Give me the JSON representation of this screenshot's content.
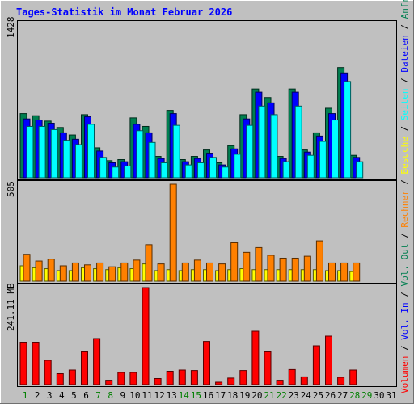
{
  "chart_data": {
    "type": "bar",
    "title": "Tages-Statistik im Monat Februar 2026",
    "categories": [
      "1",
      "2",
      "3",
      "4",
      "5",
      "6",
      "7",
      "8",
      "9",
      "10",
      "11",
      "12",
      "13",
      "14",
      "15",
      "16",
      "17",
      "18",
      "19",
      "20",
      "21",
      "22",
      "23",
      "24",
      "25",
      "26",
      "27",
      "28",
      "29",
      "30",
      "31"
    ],
    "weekend_days": [
      "1",
      "7",
      "8",
      "14",
      "15",
      "21",
      "22",
      "28",
      "29"
    ],
    "panels": [
      {
        "id": "top",
        "ymax_label": "1428",
        "ylim": [
          0,
          1428
        ],
        "series": [
          {
            "name": "Anfragen",
            "color": "#007f50",
            "values": [
              600,
              580,
              530,
              470,
              400,
              590,
              280,
              160,
              170,
              560,
              480,
              200,
              630,
              170,
              200,
              260,
              140,
              300,
              590,
              830,
              750,
              200,
              830,
              260,
              420,
              650,
              1030,
              210,
              0,
              0,
              0
            ]
          },
          {
            "name": "Dateien",
            "color": "#0000ff",
            "values": [
              550,
              540,
              510,
              420,
              360,
              570,
              250,
              140,
              150,
              500,
              420,
              180,
              600,
              150,
              180,
              230,
              120,
              270,
              550,
              800,
              700,
              180,
              800,
              240,
              390,
              600,
              980,
              190,
              0,
              0,
              0
            ]
          },
          {
            "name": "Seiten",
            "color": "#00ffff",
            "values": [
              480,
              480,
              450,
              350,
              310,
              500,
              190,
              100,
              110,
              440,
              330,
              140,
              490,
              120,
              140,
              190,
              100,
              220,
              490,
              670,
              590,
              150,
              670,
              210,
              340,
              540,
              900,
              150,
              0,
              0,
              0
            ]
          }
        ]
      },
      {
        "id": "middle",
        "ymax_label": "505",
        "ylim": [
          0,
          505
        ],
        "series": [
          {
            "name": "Besuche",
            "color": "#ffff00",
            "values": [
              80,
              70,
              65,
              55,
              55,
              70,
              65,
              60,
              70,
              65,
              90,
              55,
              60,
              55,
              60,
              60,
              55,
              60,
              65,
              60,
              60,
              60,
              60,
              60,
              60,
              55,
              55,
              50,
              0,
              0,
              0
            ]
          },
          {
            "name": "Rechner",
            "color": "#ff8000",
            "values": [
              140,
              105,
              115,
              80,
              95,
              85,
              95,
              75,
              95,
              110,
              190,
              90,
              505,
              95,
              110,
              95,
              90,
              200,
              150,
              175,
              135,
              120,
              120,
              130,
              210,
              95,
              95,
              95,
              0,
              0,
              0
            ]
          }
        ]
      },
      {
        "id": "bottom",
        "ymax_label": "241.11 MB",
        "ylim": [
          0,
          400
        ],
        "series": [
          {
            "name": "Volumen",
            "color": "#ff0000",
            "values": [
              175,
              175,
              100,
              45,
              60,
              135,
              190,
              18,
              50,
              50,
              400,
              25,
              55,
              60,
              58,
              178,
              10,
              27,
              58,
              220,
              135,
              18,
              62,
              32,
              160,
              200,
              30,
              60,
              0,
              0,
              0
            ]
          }
        ]
      }
    ],
    "right_legend": [
      {
        "text": "Anfragen",
        "color": "#007f50"
      },
      {
        "text": "Dateien",
        "color": "#0000ff"
      },
      {
        "text": "Seiten",
        "color": "#00ffff"
      },
      {
        "text": "Besuche",
        "color": "#ffff00"
      },
      {
        "text": "Rechner",
        "color": "#ff8000"
      },
      {
        "text": "Vol. Out",
        "color": "#007f50"
      },
      {
        "text": "Vol. In",
        "color": "#0000ff"
      },
      {
        "text": "Volumen",
        "color": "#ff0000"
      }
    ],
    "legend_separator": "/",
    "colors": {
      "title": "#0000ff",
      "weekday_label": "#000000",
      "weekend_label": "#007f00",
      "frame": "#000000",
      "background": "#c0c0c0"
    }
  }
}
